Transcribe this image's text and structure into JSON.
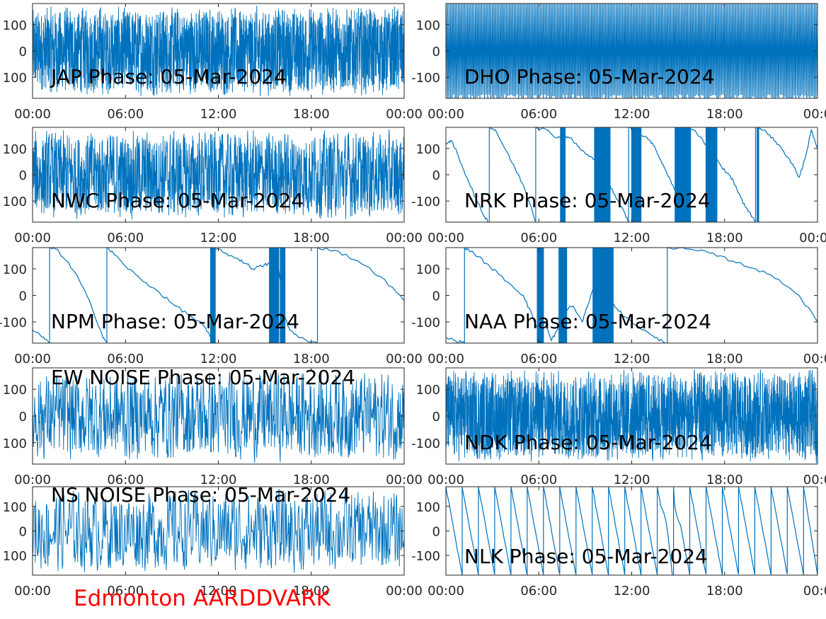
{
  "figure": {
    "footer_label": "Edmonton AARDDVARK",
    "footer_color": "#ff0000",
    "line_color": "#0072bd"
  },
  "chart_data": [
    {
      "type": "line",
      "title": "JAP Phase: 05-Mar-2024",
      "style": "noise",
      "density": 2400,
      "x_ticks": [
        "00:00",
        "06:00",
        "12:00",
        "18:00",
        "00:00"
      ],
      "y_ticks": [
        "100",
        "0",
        "-100"
      ],
      "y_ticks_shown": [
        "100",
        "0",
        "100"
      ],
      "ylim": [
        -180,
        180
      ],
      "xlim_hours": [
        0,
        24
      ],
      "grid": false
    },
    {
      "type": "line",
      "title": "DHO Phase: 05-Mar-2024",
      "style": "dense-saw",
      "period_min": 6,
      "x_ticks": [
        "00:00",
        "06:00",
        "12:00",
        "18:00",
        "00:0"
      ],
      "y_ticks": [
        "100",
        "0",
        "-100"
      ],
      "y_ticks_shown": [
        "100",
        "0",
        "-100"
      ],
      "ylim": [
        -180,
        180
      ],
      "xlim_hours": [
        0,
        24
      ],
      "grid": false
    },
    {
      "type": "line",
      "title": "NWC Phase: 05-Mar-2024",
      "style": "noise",
      "density": 1600,
      "x_ticks": [
        "00:00",
        "06:00",
        "12:00",
        "18:00",
        "00:00"
      ],
      "y_ticks": [
        "100",
        "0",
        "-100"
      ],
      "y_ticks_shown": [
        "100",
        "0",
        "100"
      ],
      "ylim": [
        -180,
        180
      ],
      "xlim_hours": [
        0,
        24
      ],
      "grid": false
    },
    {
      "type": "line",
      "title": "NRK Phase: 05-Mar-2024",
      "style": "drift",
      "points": [
        [
          0,
          120
        ],
        [
          0.3,
          130
        ],
        [
          0.6,
          100
        ],
        [
          1.0,
          40
        ],
        [
          1.5,
          -30
        ],
        [
          2.0,
          -100
        ],
        [
          2.5,
          -160
        ],
        [
          2.8,
          -180
        ],
        [
          2.8,
          180
        ],
        [
          3.2,
          170
        ],
        [
          3.8,
          100
        ],
        [
          4.5,
          20
        ],
        [
          5.0,
          -40
        ],
        [
          5.5,
          -120
        ],
        [
          5.8,
          -180
        ],
        [
          5.8,
          180
        ],
        [
          6.5,
          170
        ],
        [
          7.2,
          140
        ],
        [
          7.6,
          150
        ],
        [
          8.0,
          140
        ],
        [
          8.5,
          110
        ],
        [
          9.0,
          80
        ],
        [
          9.5,
          60
        ],
        [
          10.0,
          20
        ],
        [
          10.5,
          -30
        ],
        [
          11.0,
          -90
        ],
        [
          11.5,
          -140
        ],
        [
          11.8,
          -180
        ],
        [
          11.8,
          180
        ],
        [
          12.5,
          160
        ],
        [
          13.2,
          130
        ],
        [
          13.6,
          90
        ],
        [
          14.0,
          40
        ],
        [
          14.5,
          -20
        ],
        [
          15.0,
          -90
        ],
        [
          15.3,
          -180
        ],
        [
          15.3,
          180
        ],
        [
          16.0,
          170
        ],
        [
          16.6,
          130
        ],
        [
          17.2,
          80
        ],
        [
          17.8,
          30
        ],
        [
          18.3,
          0
        ],
        [
          18.7,
          -40
        ],
        [
          19.2,
          -110
        ],
        [
          19.6,
          -140
        ],
        [
          20.0,
          -180
        ],
        [
          20.0,
          180
        ],
        [
          20.6,
          170
        ],
        [
          21.2,
          130
        ],
        [
          21.8,
          90
        ],
        [
          22.4,
          40
        ],
        [
          22.8,
          -10
        ],
        [
          23.2,
          60
        ],
        [
          23.6,
          170
        ],
        [
          24,
          100
        ]
      ],
      "jumps": [
        [
          7.4,
          7.7
        ],
        [
          9.6,
          10.6
        ],
        [
          12.0,
          12.6
        ],
        [
          14.8,
          15.8
        ],
        [
          16.8,
          17.5
        ],
        [
          20.1,
          20.2
        ]
      ],
      "x_ticks": [
        "00:00",
        "06:00",
        "12:00",
        "18:00",
        "00:00"
      ],
      "y_ticks": [
        "100",
        "0",
        "-100"
      ],
      "y_ticks_shown": [
        "100",
        "0",
        "-100"
      ],
      "ylim": [
        -180,
        180
      ],
      "xlim_hours": [
        0,
        24
      ],
      "grid": false
    },
    {
      "type": "line",
      "title": "NPM Phase: 05-Mar-2024",
      "style": "drift",
      "points": [
        [
          0,
          -130
        ],
        [
          0.5,
          -150
        ],
        [
          1.1,
          -180
        ],
        [
          1.1,
          180
        ],
        [
          1.5,
          175
        ],
        [
          2.2,
          130
        ],
        [
          3.0,
          60
        ],
        [
          3.8,
          -40
        ],
        [
          4.5,
          -150
        ],
        [
          4.8,
          -180
        ],
        [
          4.8,
          180
        ],
        [
          5.2,
          160
        ],
        [
          6.0,
          110
        ],
        [
          7.0,
          60
        ],
        [
          8.0,
          20
        ],
        [
          9.0,
          -30
        ],
        [
          10.0,
          -70
        ],
        [
          11.0,
          -110
        ],
        [
          11.5,
          -160
        ],
        [
          11.7,
          -180
        ],
        [
          11.7,
          180
        ],
        [
          12.4,
          160
        ],
        [
          13.2,
          140
        ],
        [
          13.8,
          120
        ],
        [
          14.2,
          100
        ],
        [
          14.8,
          110
        ],
        [
          15.3,
          120
        ],
        [
          15.3,
          180
        ],
        [
          15.8,
          140
        ],
        [
          16.3,
          -80
        ],
        [
          16.6,
          -130
        ],
        [
          17.2,
          -160
        ],
        [
          18.4,
          -180
        ],
        [
          18.4,
          180
        ],
        [
          19.5,
          170
        ],
        [
          21.0,
          130
        ],
        [
          22.5,
          70
        ],
        [
          24,
          -20
        ]
      ],
      "jumps": [
        [
          11.5,
          11.8
        ],
        [
          15.3,
          15.9
        ],
        [
          16.0,
          16.3
        ]
      ],
      "x_ticks": [
        "00:00",
        "06:00",
        "12:00",
        "18:00",
        "00:00"
      ],
      "y_ticks": [
        "100",
        "0",
        "-100"
      ],
      "y_ticks_shown": [
        "100",
        "0",
        "-100"
      ],
      "ylim": [
        -180,
        180
      ],
      "xlim_hours": [
        0,
        24
      ],
      "grid": false
    },
    {
      "type": "line",
      "title": "NAA Phase: 05-Mar-2024",
      "style": "drift",
      "points": [
        [
          0,
          -160
        ],
        [
          0.6,
          -170
        ],
        [
          1.2,
          -180
        ],
        [
          1.2,
          180
        ],
        [
          1.8,
          160
        ],
        [
          2.6,
          120
        ],
        [
          3.4,
          80
        ],
        [
          4.2,
          40
        ],
        [
          5.0,
          0
        ],
        [
          5.6,
          -80
        ],
        [
          6.0,
          -140
        ],
        [
          6.4,
          -100
        ],
        [
          6.8,
          -170
        ],
        [
          7.2,
          -130
        ],
        [
          7.6,
          -60
        ],
        [
          8.2,
          -40
        ],
        [
          8.8,
          -100
        ],
        [
          9.2,
          -30
        ],
        [
          9.6,
          40
        ],
        [
          10.2,
          120
        ],
        [
          10.8,
          -30
        ],
        [
          11.5,
          -80
        ],
        [
          12.5,
          -120
        ],
        [
          13.5,
          -160
        ],
        [
          14.3,
          -180
        ],
        [
          14.3,
          180
        ],
        [
          15.5,
          175
        ],
        [
          17.0,
          160
        ],
        [
          18.5,
          130
        ],
        [
          20.0,
          100
        ],
        [
          21.5,
          60
        ],
        [
          22.8,
          0
        ],
        [
          24,
          -100
        ]
      ],
      "jumps": [
        [
          5.9,
          6.3
        ],
        [
          7.3,
          7.8
        ],
        [
          9.5,
          10.8
        ]
      ],
      "x_ticks": [
        "00:00",
        "06:00",
        "12:00",
        "18:00",
        "00:0"
      ],
      "y_ticks": [
        "100",
        "0",
        "-100"
      ],
      "y_ticks_shown": [
        "100",
        "0",
        "-100"
      ],
      "ylim": [
        -180,
        180
      ],
      "xlim_hours": [
        0,
        24
      ],
      "grid": false
    },
    {
      "type": "line",
      "title": "EW NOISE Phase: 05-Mar-2024",
      "style": "noise",
      "density": 900,
      "x_ticks": [
        "00:00",
        "06:00",
        "12:00",
        "18:00",
        "00:00"
      ],
      "y_ticks": [
        "100",
        "0",
        "-100"
      ],
      "y_ticks_shown": [
        "100",
        "0",
        "100"
      ],
      "ylim": [
        -180,
        180
      ],
      "xlim_hours": [
        0,
        24
      ],
      "grid": false
    },
    {
      "type": "line",
      "title": "NDK Phase: 05-Mar-2024",
      "style": "noise",
      "density": 2600,
      "x_ticks": [
        "00:00",
        "06:00",
        "12:00",
        "18:00",
        "00:0"
      ],
      "y_ticks": [
        "100",
        "0",
        "-100"
      ],
      "y_ticks_shown": [
        "100",
        "0",
        "-100"
      ],
      "ylim": [
        -180,
        180
      ],
      "xlim_hours": [
        0,
        24
      ],
      "grid": false
    },
    {
      "type": "line",
      "title": "NS NOISE Phase: 05-Mar-2024",
      "style": "noise",
      "density": 700,
      "x_ticks": [
        "00:00",
        "06:00",
        "12:00",
        "18:00",
        "00:00"
      ],
      "y_ticks": [
        "100",
        "0",
        "-100"
      ],
      "y_ticks_shown": [
        "100",
        "0",
        "100"
      ],
      "ylim": [
        -180,
        180
      ],
      "xlim_hours": [
        0,
        24
      ],
      "grid": false
    },
    {
      "type": "line",
      "title": "NLK Phase: 05-Mar-2024",
      "style": "saw",
      "period_hours": 1.05,
      "anomaly_hour": 14.5,
      "x_ticks": [
        "00:00",
        "06:00",
        "12:00",
        "18:00",
        "00:0"
      ],
      "y_ticks": [
        "100",
        "0",
        "-100"
      ],
      "y_ticks_shown": [
        "100",
        "0",
        "-100"
      ],
      "ylim": [
        -180,
        180
      ],
      "xlim_hours": [
        0,
        24
      ],
      "grid": false
    }
  ]
}
